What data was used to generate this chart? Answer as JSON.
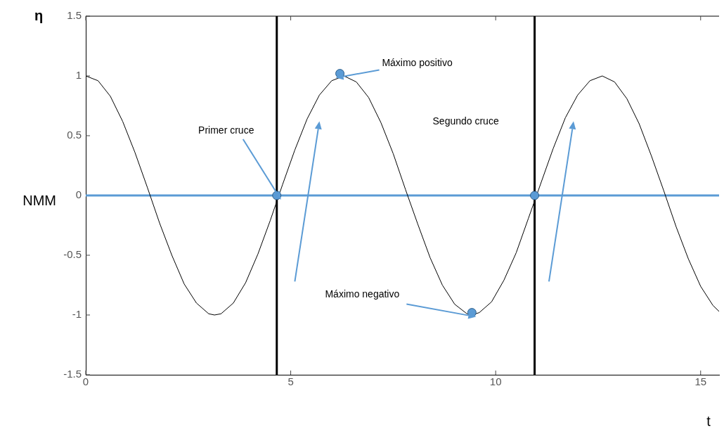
{
  "chart_data": {
    "type": "line",
    "ylabel": "η",
    "xlabel": "t",
    "xlim": [
      0,
      15.45
    ],
    "ylim": [
      -1.5,
      1.5
    ],
    "xticks": [
      0,
      5,
      10,
      15
    ],
    "yticks": [
      -1.5,
      -1,
      -0.5,
      0,
      0.5,
      1,
      1.5
    ],
    "grid": false,
    "legend": false,
    "series": [
      {
        "type": "line",
        "color": "#000000",
        "marker": "none",
        "x": [
          0,
          0.3,
          0.6,
          0.9,
          1.2,
          1.5,
          1.8,
          2.1,
          2.4,
          2.7,
          3.0,
          3.14,
          3.3,
          3.6,
          3.9,
          4.2,
          4.5,
          4.8,
          5.1,
          5.4,
          5.7,
          6.0,
          6.3,
          6.6,
          6.9,
          7.2,
          7.5,
          7.8,
          8.1,
          8.4,
          8.7,
          9.0,
          9.3,
          9.42,
          9.6,
          9.9,
          10.2,
          10.5,
          10.8,
          11.1,
          11.4,
          11.7,
          12.0,
          12.3,
          12.6,
          12.9,
          13.2,
          13.5,
          13.8,
          14.1,
          14.4,
          14.7,
          15.0,
          15.3,
          15.45
        ],
        "values": [
          1,
          0.96,
          0.83,
          0.62,
          0.36,
          0.07,
          -0.23,
          -0.5,
          -0.74,
          -0.9,
          -0.99,
          -1,
          -0.99,
          -0.9,
          -0.73,
          -0.49,
          -0.21,
          0.09,
          0.38,
          0.64,
          0.84,
          0.96,
          1,
          0.95,
          0.82,
          0.61,
          0.35,
          0.05,
          -0.24,
          -0.52,
          -0.75,
          -0.91,
          -0.99,
          -1,
          -0.98,
          -0.89,
          -0.71,
          -0.48,
          -0.19,
          0.1,
          0.39,
          0.65,
          0.84,
          0.96,
          1,
          0.95,
          0.81,
          0.6,
          0.33,
          0.04,
          -0.26,
          -0.53,
          -0.76,
          -0.92,
          -0.97
        ]
      },
      {
        "type": "scatter",
        "color": "#5b9bd5",
        "marker": "circle",
        "x": [
          4.66,
          6.2,
          9.42,
          10.95
        ],
        "values": [
          0,
          1.02,
          -0.98,
          0
        ]
      }
    ],
    "ref_lines": [
      {
        "axis": "y",
        "value": 0,
        "label": "NMM",
        "color": "#5b9bd5"
      },
      {
        "axis": "x",
        "value": 4.66,
        "color": "#000000"
      },
      {
        "axis": "x",
        "value": 10.95,
        "color": "#000000"
      }
    ],
    "annotations": [
      {
        "text": "Máximo positivo",
        "x": 6.2,
        "y": 1.02
      },
      {
        "text": "Primer cruce",
        "x": 4.66,
        "y": 0
      },
      {
        "text": "Máximo negativo",
        "x": 9.42,
        "y": -0.98
      },
      "Segundo cruce"
    ]
  }
}
